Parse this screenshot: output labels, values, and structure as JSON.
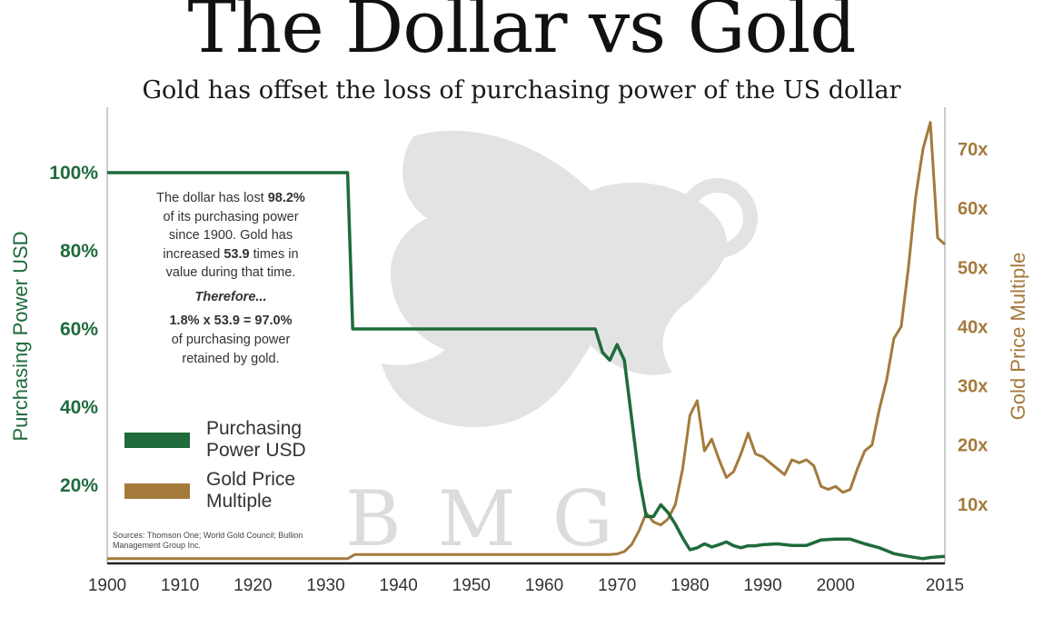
{
  "title": "The Dollar vs Gold",
  "subtitle": "Gold has offset the loss of purchasing power of the US dollar",
  "note": {
    "line1_pre": "The dollar has lost ",
    "line1_bold": "98.2%",
    "line2": "of its purchasing power",
    "line3": "since 1900.  Gold has",
    "line4_pre": "increased ",
    "line4_bold": "53.9",
    "line4_post": " times in",
    "line5": "value during that time.",
    "therefore": "Therefore...",
    "equation": "1.8% x 53.9 = 97.0%",
    "line6": "of purchasing power",
    "line7": "retained by gold."
  },
  "legend": {
    "purchasing_power": "Purchasing Power USD",
    "gold_multiple": "Gold Price Multiple"
  },
  "sources": "Sources: Thomson One; World Gold Council; Bullion Management Group Inc.",
  "watermark": "BMG",
  "colors": {
    "purchasing_power": "#1f6b3c",
    "gold": "#a47a3c",
    "watermark": "#d9d9d9"
  },
  "chart_data": {
    "type": "line",
    "title": "The Dollar vs Gold",
    "subtitle": "Gold has offset the loss of purchasing power of the US dollar",
    "xlabel": "",
    "ylabel_left": "Purchasing Power USD",
    "ylabel_right": "Gold Price Multiple",
    "xlim": [
      1900,
      2015
    ],
    "ylim_left": [
      0,
      1.15
    ],
    "ylim_right": [
      0,
      78
    ],
    "x_ticks": [
      "1900",
      "1910",
      "1920",
      "1930",
      "1940",
      "1950",
      "1960",
      "1970",
      "1980",
      "1990",
      "2000",
      "2015"
    ],
    "x_tick_values": [
      1900,
      1910,
      1920,
      1930,
      1940,
      1950,
      1960,
      1970,
      1980,
      1990,
      2000,
      2015
    ],
    "left_ticks": [
      "20%",
      "40%",
      "60%",
      "80%",
      "100%"
    ],
    "left_tick_values": [
      0.2,
      0.4,
      0.6,
      0.8,
      1.0
    ],
    "right_ticks": [
      "10x",
      "20x",
      "30x",
      "40x",
      "50x",
      "60x",
      "70x"
    ],
    "right_tick_values": [
      10,
      20,
      30,
      40,
      50,
      60,
      70
    ],
    "grid": false,
    "legend_position": "left",
    "series": [
      {
        "name": "Purchasing Power USD",
        "axis": "left",
        "color": "#1f6b3c",
        "points": [
          [
            1900,
            1.0
          ],
          [
            1933,
            1.0
          ],
          [
            1933.7,
            0.6
          ],
          [
            1967,
            0.6
          ],
          [
            1968,
            0.54
          ],
          [
            1969,
            0.52
          ],
          [
            1970,
            0.56
          ],
          [
            1971,
            0.52
          ],
          [
            1972,
            0.37
          ],
          [
            1973,
            0.22
          ],
          [
            1974,
            0.12
          ],
          [
            1975,
            0.12
          ],
          [
            1976,
            0.15
          ],
          [
            1977,
            0.13
          ],
          [
            1978,
            0.1
          ],
          [
            1979,
            0.065
          ],
          [
            1980,
            0.035
          ],
          [
            1981,
            0.04
          ],
          [
            1982,
            0.05
          ],
          [
            1983,
            0.042
          ],
          [
            1984,
            0.048
          ],
          [
            1985,
            0.055
          ],
          [
            1986,
            0.045
          ],
          [
            1987,
            0.04
          ],
          [
            1988,
            0.045
          ],
          [
            1989,
            0.045
          ],
          [
            1990,
            0.048
          ],
          [
            1992,
            0.05
          ],
          [
            1994,
            0.046
          ],
          [
            1996,
            0.046
          ],
          [
            1998,
            0.06
          ],
          [
            2000,
            0.062
          ],
          [
            2002,
            0.062
          ],
          [
            2004,
            0.05
          ],
          [
            2006,
            0.04
          ],
          [
            2008,
            0.025
          ],
          [
            2010,
            0.018
          ],
          [
            2012,
            0.012
          ],
          [
            2013,
            0.015
          ],
          [
            2015,
            0.018
          ]
        ]
      },
      {
        "name": "Gold Price Multiple",
        "axis": "right",
        "color": "#a47a3c",
        "points": [
          [
            1900,
            0.8
          ],
          [
            1933,
            0.8
          ],
          [
            1934,
            1.5
          ],
          [
            1969,
            1.5
          ],
          [
            1970,
            1.6
          ],
          [
            1971,
            2.0
          ],
          [
            1972,
            3.2
          ],
          [
            1973,
            5.5
          ],
          [
            1974,
            8.5
          ],
          [
            1975,
            7.0
          ],
          [
            1976,
            6.5
          ],
          [
            1977,
            7.5
          ],
          [
            1978,
            10.0
          ],
          [
            1979,
            16.0
          ],
          [
            1980,
            25.0
          ],
          [
            1981,
            27.5
          ],
          [
            1982,
            19.0
          ],
          [
            1983,
            21.0
          ],
          [
            1984,
            17.5
          ],
          [
            1985,
            14.5
          ],
          [
            1986,
            15.5
          ],
          [
            1987,
            18.5
          ],
          [
            1988,
            22.0
          ],
          [
            1989,
            18.5
          ],
          [
            1990,
            18.0
          ],
          [
            1991,
            17.0
          ],
          [
            1992,
            16.0
          ],
          [
            1993,
            15.0
          ],
          [
            1994,
            17.5
          ],
          [
            1995,
            17.0
          ],
          [
            1996,
            17.5
          ],
          [
            1997,
            16.5
          ],
          [
            1998,
            13.0
          ],
          [
            1999,
            12.5
          ],
          [
            2000,
            13.0
          ],
          [
            2001,
            12.0
          ],
          [
            2002,
            12.5
          ],
          [
            2003,
            16.0
          ],
          [
            2004,
            19.0
          ],
          [
            2005,
            20.0
          ],
          [
            2006,
            26.0
          ],
          [
            2007,
            31.0
          ],
          [
            2008,
            38.0
          ],
          [
            2009,
            40.0
          ],
          [
            2010,
            50.0
          ],
          [
            2011,
            62.0
          ],
          [
            2012,
            70.0
          ],
          [
            2013,
            74.5
          ],
          [
            2014,
            55.0
          ],
          [
            2015,
            53.9
          ]
        ]
      }
    ]
  }
}
